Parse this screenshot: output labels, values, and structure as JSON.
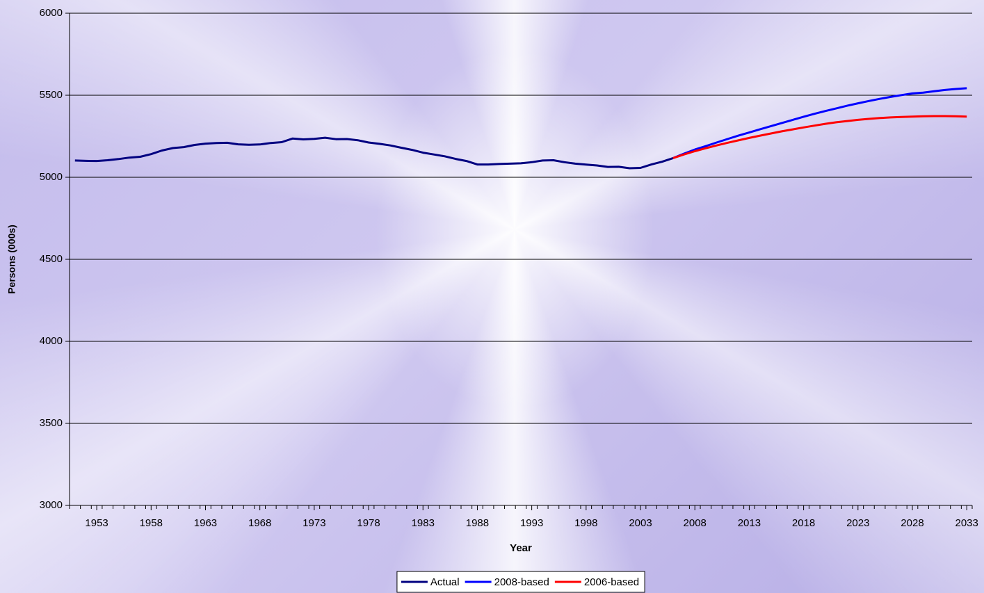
{
  "chart_data": {
    "type": "line",
    "x_label": "Year",
    "y_label": "Persons (000s)",
    "x": [
      1951,
      1952,
      1953,
      1954,
      1955,
      1956,
      1957,
      1958,
      1959,
      1960,
      1961,
      1962,
      1963,
      1964,
      1965,
      1966,
      1967,
      1968,
      1969,
      1970,
      1971,
      1972,
      1973,
      1974,
      1975,
      1976,
      1977,
      1978,
      1979,
      1980,
      1981,
      1982,
      1983,
      1984,
      1985,
      1986,
      1987,
      1988,
      1989,
      1990,
      1991,
      1992,
      1993,
      1994,
      1995,
      1996,
      1997,
      1998,
      1999,
      2000,
      2001,
      2002,
      2003,
      2004,
      2005,
      2006,
      2007,
      2008,
      2009,
      2010,
      2011,
      2012,
      2013,
      2014,
      2015,
      2016,
      2017,
      2018,
      2019,
      2020,
      2021,
      2022,
      2023,
      2024,
      2025,
      2026,
      2027,
      2028,
      2029,
      2030,
      2031,
      2032,
      2033
    ],
    "xlim": [
      1950.5,
      2033.5
    ],
    "xticks": [
      1953,
      1958,
      1963,
      1968,
      1973,
      1978,
      1983,
      1988,
      1993,
      1998,
      2003,
      2008,
      2013,
      2018,
      2023,
      2028,
      2033
    ],
    "ylim": [
      3000,
      6000
    ],
    "yticks": [
      3000,
      3500,
      4000,
      4500,
      5000,
      5500,
      6000
    ],
    "grid": true,
    "legend": "bottom",
    "series": [
      {
        "name": "Actual",
        "color": "#000080",
        "values": [
          5102,
          5100,
          5099,
          5104,
          5111,
          5120,
          5125,
          5141,
          5163,
          5178,
          5184,
          5197,
          5205,
          5209,
          5210,
          5201,
          5198,
          5200,
          5209,
          5214,
          5236,
          5231,
          5234,
          5241,
          5232,
          5233,
          5226,
          5212,
          5204,
          5194,
          5180,
          5167,
          5150,
          5139,
          5128,
          5112,
          5099,
          5078,
          5078,
          5081,
          5083,
          5085,
          5092,
          5102,
          5104,
          5092,
          5083,
          5077,
          5072,
          5063,
          5064,
          5055,
          5057,
          5078,
          5095,
          5117,
          null,
          null,
          null,
          null,
          null,
          null,
          null,
          null,
          null,
          null,
          null,
          null,
          null,
          null,
          null,
          null,
          null,
          null,
          null,
          null,
          null,
          null,
          null,
          null,
          null,
          null,
          null
        ]
      },
      {
        "name": "2008-based",
        "color": "#0000ff",
        "values": [
          null,
          null,
          null,
          null,
          null,
          null,
          null,
          null,
          null,
          null,
          null,
          null,
          null,
          null,
          null,
          null,
          null,
          null,
          null,
          null,
          null,
          null,
          null,
          null,
          null,
          null,
          null,
          null,
          null,
          null,
          null,
          null,
          null,
          null,
          null,
          null,
          null,
          null,
          null,
          null,
          null,
          null,
          null,
          null,
          null,
          null,
          null,
          null,
          null,
          null,
          null,
          null,
          null,
          null,
          null,
          5117,
          5144,
          5169,
          5190,
          5212,
          5233,
          5254,
          5273,
          5293,
          5312,
          5331,
          5350,
          5369,
          5387,
          5404,
          5420,
          5436,
          5451,
          5465,
          5478,
          5490,
          5501,
          5511,
          5516,
          5524,
          5532,
          5538,
          5543
        ]
      },
      {
        "name": "2006-based",
        "color": "#ff0000",
        "values": [
          null,
          null,
          null,
          null,
          null,
          null,
          null,
          null,
          null,
          null,
          null,
          null,
          null,
          null,
          null,
          null,
          null,
          null,
          null,
          null,
          null,
          null,
          null,
          null,
          null,
          null,
          null,
          null,
          null,
          null,
          null,
          null,
          null,
          null,
          null,
          null,
          null,
          null,
          null,
          null,
          null,
          null,
          null,
          null,
          null,
          null,
          null,
          null,
          null,
          null,
          null,
          null,
          null,
          null,
          null,
          5117,
          5139,
          5159,
          5177,
          5194,
          5210,
          5225,
          5240,
          5254,
          5267,
          5280,
          5292,
          5304,
          5315,
          5326,
          5335,
          5343,
          5350,
          5356,
          5361,
          5365,
          5368,
          5370,
          5372,
          5373,
          5373,
          5372,
          5370
        ]
      }
    ]
  }
}
